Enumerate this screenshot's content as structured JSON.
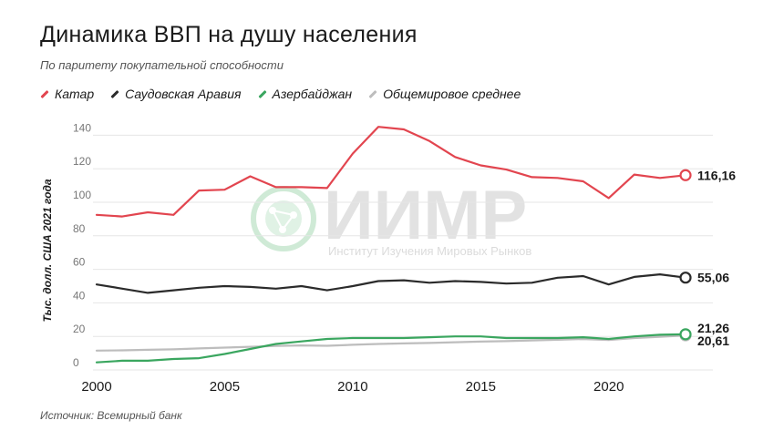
{
  "title": "Динамика ВВП на душу населения",
  "subtitle": "По паритету покупательной способности",
  "source": "Источник: Всемирный банк",
  "watermark": {
    "text": "ИИМР",
    "subtext": "Институт Изучения Мировых Рынков",
    "icon": "globe-network-icon"
  },
  "legend": [
    {
      "name": "Катар",
      "color": "#e2454f"
    },
    {
      "name": "Саудовская Аравия",
      "color": "#2b2b2b"
    },
    {
      "name": "Азербайджан",
      "color": "#3aa65f"
    },
    {
      "name": "Общемировое среднее",
      "color": "#bdbdbd"
    }
  ],
  "chart_data": {
    "type": "line",
    "title": "Динамика ВВП на душу населения",
    "subtitle": "По паритету покупательной способности",
    "ylabel": "Тыс. долл. США 2021 года",
    "xlabel": "",
    "ylim": [
      0,
      150
    ],
    "xlim": [
      2000,
      2023
    ],
    "yticks": [
      0,
      20,
      40,
      60,
      80,
      100,
      120,
      140
    ],
    "xticks": [
      2000,
      2005,
      2010,
      2015,
      2020
    ],
    "grid": "horizontal",
    "legend_position": "top-left",
    "x": [
      2000,
      2001,
      2002,
      2003,
      2004,
      2005,
      2006,
      2007,
      2008,
      2009,
      2010,
      2011,
      2012,
      2013,
      2014,
      2015,
      2016,
      2017,
      2018,
      2019,
      2020,
      2021,
      2022,
      2023
    ],
    "series": [
      {
        "name": "Катар",
        "color": "#e2454f",
        "end_label": "116,16",
        "values": [
          92.5,
          91.5,
          94,
          92.5,
          107,
          107.5,
          115.5,
          109,
          109,
          108.5,
          129,
          145,
          143.5,
          136.5,
          127,
          122,
          119.5,
          115,
          114.5,
          112.5,
          102.5,
          116.5,
          114.5,
          116.16
        ]
      },
      {
        "name": "Саудовская Аравия",
        "color": "#2b2b2b",
        "end_label": "55,06",
        "values": [
          51,
          48.5,
          46,
          47.5,
          49,
          50,
          49.5,
          48.5,
          50,
          47.5,
          50,
          53,
          53.5,
          52,
          53,
          52.5,
          51.5,
          52,
          55,
          56,
          51,
          55.5,
          57,
          55.06
        ]
      },
      {
        "name": "Азербайджан",
        "color": "#3aa65f",
        "end_label": "21,26",
        "values": [
          4.5,
          5.5,
          5.5,
          6.5,
          7,
          9.5,
          12.5,
          15.5,
          17,
          18.5,
          19,
          19,
          19,
          19.5,
          20,
          20,
          19,
          19,
          19,
          19.5,
          18.5,
          20,
          21,
          21.26
        ]
      },
      {
        "name": "Общемировое среднее",
        "color": "#bdbdbd",
        "end_label": "20,61",
        "values": [
          11.5,
          11.7,
          12,
          12.3,
          12.8,
          13.3,
          13.8,
          14.3,
          14.6,
          14.4,
          15,
          15.5,
          15.8,
          16.1,
          16.5,
          16.9,
          17.2,
          17.6,
          18,
          18.4,
          17.8,
          19,
          19.8,
          20.61
        ]
      }
    ]
  }
}
